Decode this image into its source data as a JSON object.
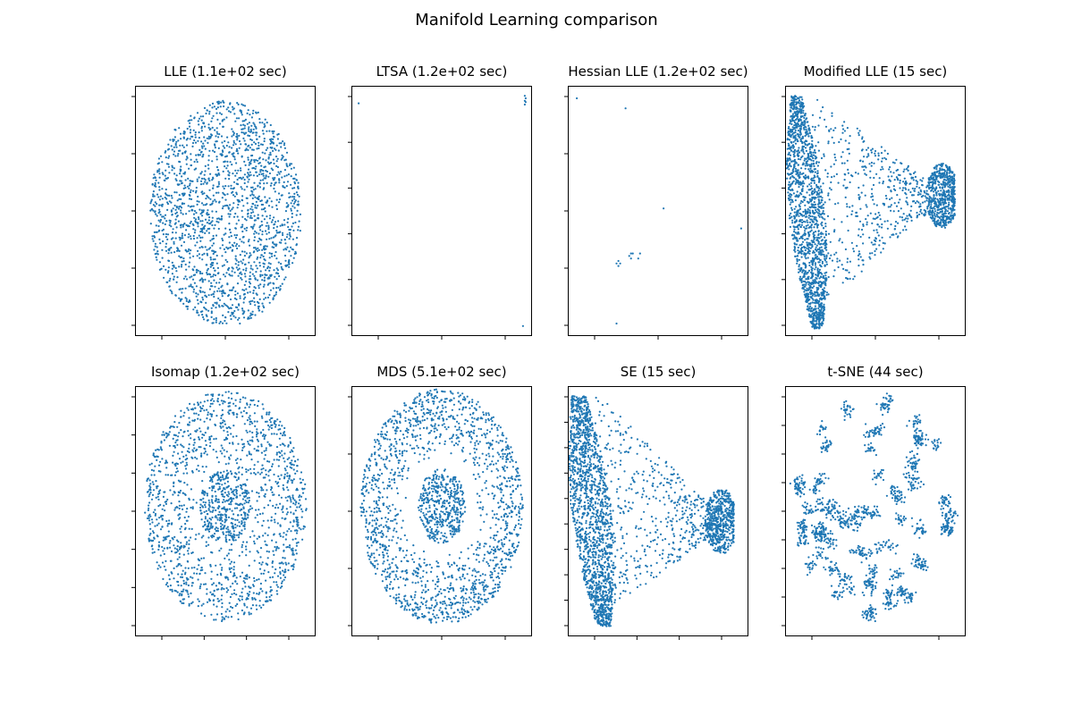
{
  "figure": {
    "title": "Manifold Learning comparison"
  },
  "colors": {
    "points": "#1f77b4",
    "axes": "#000000",
    "background": "#ffffff"
  },
  "chart_data": [
    {
      "type": "scatter",
      "title": "LLE (1.1e+02 sec)",
      "shape": "ellipse",
      "center": [
        0.5,
        0.49
      ],
      "radii": [
        0.42,
        0.45
      ],
      "n": 1900,
      "xtick_count": 3,
      "ytick_count": 5,
      "tick_labels_visible": false
    },
    {
      "type": "scatter",
      "title": "LTSA (1.2e+02 sec)",
      "shape": "points",
      "points": [
        [
          0.04,
          0.93
        ],
        [
          0.96,
          0.96
        ],
        [
          0.965,
          0.95
        ],
        [
          0.96,
          0.94
        ],
        [
          0.965,
          0.935
        ],
        [
          0.96,
          0.925
        ],
        [
          0.95,
          0.04
        ]
      ],
      "xtick_count": 3,
      "ytick_count": 6,
      "tick_labels_visible": false
    },
    {
      "type": "scatter",
      "title": "Hessian LLE (1.2e+02 sec)",
      "shape": "points",
      "points": [
        [
          0.05,
          0.95
        ],
        [
          0.32,
          0.91
        ],
        [
          0.53,
          0.51
        ],
        [
          0.96,
          0.43
        ],
        [
          0.35,
          0.33
        ],
        [
          0.36,
          0.33
        ],
        [
          0.34,
          0.32
        ],
        [
          0.35,
          0.31
        ],
        [
          0.28,
          0.3
        ],
        [
          0.27,
          0.29
        ],
        [
          0.29,
          0.29
        ],
        [
          0.28,
          0.28
        ],
        [
          0.4,
          0.33
        ],
        [
          0.39,
          0.31
        ],
        [
          0.27,
          0.05
        ]
      ],
      "xtick_count": 3,
      "ytick_count": 5,
      "tick_labels_visible": false
    },
    {
      "type": "scatter",
      "title": "Modified LLE (15 sec)",
      "shape": "cone",
      "n": 2600,
      "xtick_count": 3,
      "ytick_count": 6,
      "tick_labels_visible": false
    },
    {
      "type": "scatter",
      "title": "Isomap (1.2e+02 sec)",
      "shape": "ring",
      "center": [
        0.5,
        0.52
      ],
      "radii": [
        0.45,
        0.46
      ],
      "core_radii": [
        0.14,
        0.15
      ],
      "n": 1800,
      "xtick_count": 4,
      "ytick_count": 7,
      "tick_labels_visible": false
    },
    {
      "type": "scatter",
      "title": "MDS (5.1e+02 sec)",
      "shape": "ring",
      "center": [
        0.5,
        0.52
      ],
      "radii": [
        0.45,
        0.47
      ],
      "core_radii": [
        0.13,
        0.15
      ],
      "hole": 0.42,
      "n": 2000,
      "xtick_count": 3,
      "ytick_count": 5,
      "tick_labels_visible": false
    },
    {
      "type": "scatter",
      "title": "SE (15 sec)",
      "shape": "cone-se",
      "n": 2600,
      "xtick_count": 4,
      "ytick_count": 10,
      "tick_labels_visible": false
    },
    {
      "type": "scatter",
      "title": "t-SNE (44 sec)",
      "shape": "clusters",
      "n": 1500,
      "xtick_count": 2,
      "ytick_count": 9,
      "tick_labels_visible": false
    }
  ]
}
